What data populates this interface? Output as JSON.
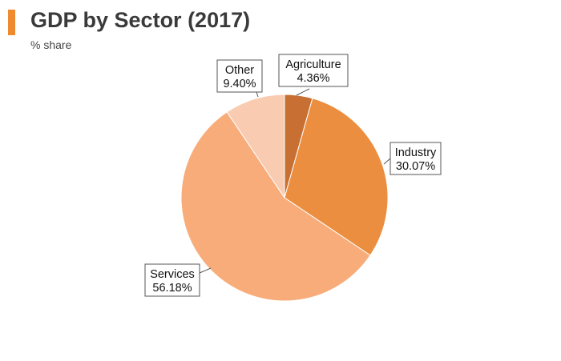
{
  "header": {
    "title": "GDP by Sector (2017)",
    "subtitle": "% share",
    "accent_color": "#f08a2e"
  },
  "chart_data": {
    "type": "pie",
    "title": "GDP by Sector (2017)",
    "subtitle": "% share",
    "categories": [
      "Agriculture",
      "Industry",
      "Services",
      "Other"
    ],
    "values": [
      4.36,
      30.07,
      56.18,
      9.4
    ],
    "labels": [
      "4.36%",
      "30.07%",
      "56.18%",
      "9.40%"
    ],
    "colors": [
      "#c87033",
      "#eb8e40",
      "#f8ac7a",
      "#f9ccb2"
    ],
    "start_angle": "12 o'clock",
    "direction": "clockwise",
    "legend": "none"
  }
}
